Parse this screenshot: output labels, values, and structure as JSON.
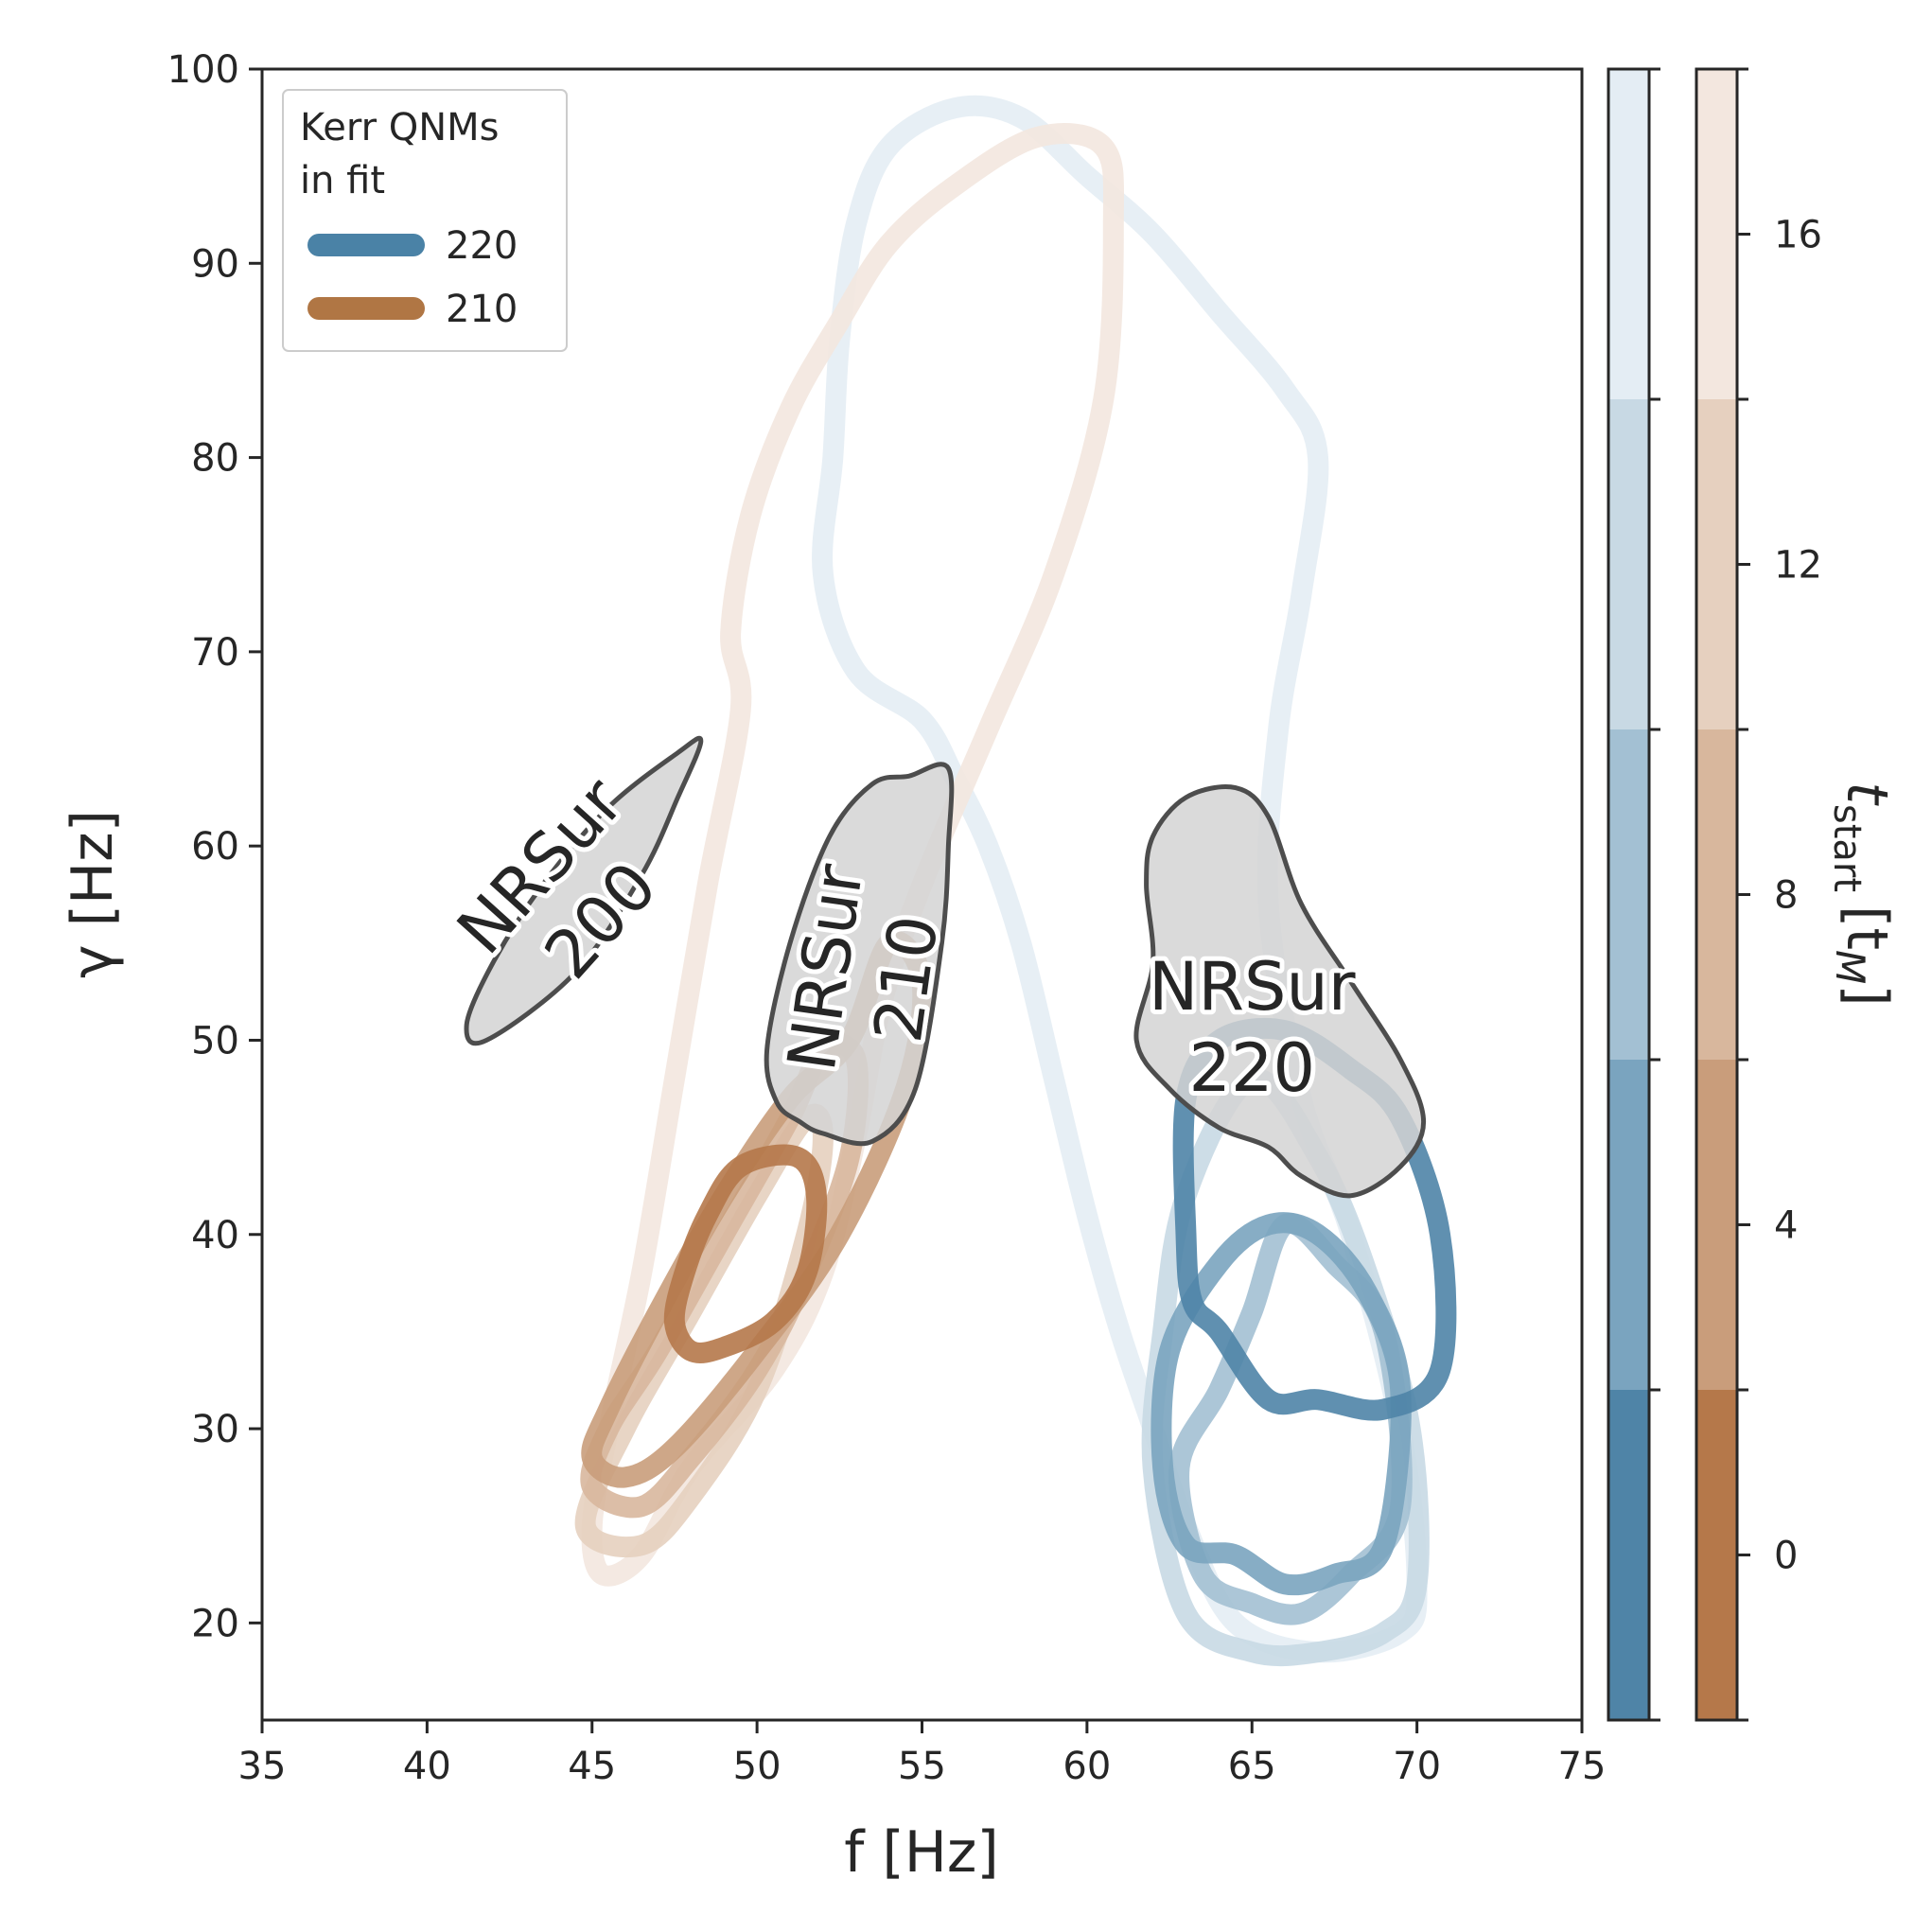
{
  "chart_data": {
    "type": "contour",
    "xlabel": "f [Hz]",
    "ylabel": "γ [Hz]",
    "xlim": [
      35,
      75
    ],
    "ylim": [
      15,
      100
    ],
    "xticks": [
      35,
      40,
      45,
      50,
      55,
      60,
      65,
      70,
      75
    ],
    "yticks": [
      20,
      30,
      40,
      50,
      60,
      70,
      80,
      90,
      100
    ],
    "legend": {
      "title": "Kerr QNMs in fit",
      "title_lines": [
        "Kerr QNMs",
        "in fit"
      ],
      "placement": "upper left",
      "entries": [
        {
          "label": "220",
          "color": "#4a82a6"
        },
        {
          "label": "210",
          "color": "#b07644"
        }
      ]
    },
    "colorbar": {
      "label": "t_start [t_M]",
      "label_main": "t",
      "label_sub": "start",
      "label_unit": "[t",
      "label_unit_sub": "M",
      "label_close": "]",
      "ticks": [
        0,
        4,
        8,
        12,
        16
      ],
      "range": [
        -2,
        18
      ],
      "levels": [
        -2,
        2,
        6,
        10,
        14,
        18
      ],
      "blue_shades": [
        "#4f84a7",
        "#7aa4bf",
        "#a3c0d3",
        "#c8d9e4",
        "#e4edf4"
      ],
      "brown_shades": [
        "#b5784a",
        "#c99d7b",
        "#d8b79d",
        "#e6d0bf",
        "#f3e7df"
      ]
    },
    "regions": [
      {
        "label": "NRSur 200",
        "label_lines": [
          "NRSur",
          "200"
        ],
        "color": "#d4d4d4",
        "points": [
          [
            41.2,
            50.8
          ],
          [
            41.8,
            50.0
          ],
          [
            44.5,
            53.5
          ],
          [
            46.5,
            58.5
          ],
          [
            47.6,
            62.5
          ],
          [
            48.3,
            65.4
          ],
          [
            47.6,
            64.8
          ],
          [
            45.5,
            62.0
          ],
          [
            43.5,
            58.0
          ],
          [
            42.0,
            54.0
          ]
        ]
      },
      {
        "label": "NRSur 210",
        "label_lines": [
          "NRSur",
          "210"
        ],
        "color": "#d4d4d4",
        "points": [
          [
            51.3,
            45.8
          ],
          [
            52.0,
            45.2
          ],
          [
            53.5,
            44.8
          ],
          [
            54.8,
            47.5
          ],
          [
            55.6,
            55.0
          ],
          [
            55.8,
            60.0
          ],
          [
            55.8,
            64.0
          ],
          [
            54.6,
            63.6
          ],
          [
            53.5,
            63.2
          ],
          [
            52.2,
            60.5
          ],
          [
            51.0,
            55.0
          ],
          [
            50.3,
            49.5
          ],
          [
            50.6,
            46.8
          ]
        ]
      },
      {
        "label": "NRSur 220",
        "label_lines": [
          "NRSur",
          "220"
        ],
        "color": "#d4d4d4",
        "points": [
          [
            62.0,
            60.5
          ],
          [
            63.0,
            62.5
          ],
          [
            64.5,
            63.0
          ],
          [
            65.5,
            61.5
          ],
          [
            66.5,
            57.0
          ],
          [
            68.0,
            53.0
          ],
          [
            69.5,
            49.0
          ],
          [
            70.2,
            45.8
          ],
          [
            69.5,
            43.5
          ],
          [
            68.0,
            42.0
          ],
          [
            66.5,
            43.0
          ],
          [
            65.5,
            44.5
          ],
          [
            64.0,
            45.5
          ],
          [
            62.5,
            47.5
          ],
          [
            61.5,
            50.0
          ],
          [
            62.0,
            54.0
          ],
          [
            61.8,
            58.0
          ]
        ]
      }
    ],
    "series": [
      {
        "name": "220",
        "color": "#4a82a6",
        "contours": [
          {
            "t_start": 0,
            "points": [
              [
                64.0,
                35.0
              ],
              [
                65.5,
                31.5
              ],
              [
                67.0,
                31.5
              ],
              [
                69.0,
                31.0
              ],
              [
                70.7,
                33.0
              ],
              [
                70.7,
                40.0
              ],
              [
                69.5,
                46.0
              ],
              [
                68.0,
                48.5
              ],
              [
                66.0,
                50.5
              ],
              [
                64.0,
                50.0
              ],
              [
                63.0,
                47.0
              ],
              [
                63.0,
                40.0
              ],
              [
                63.2,
                36.5
              ]
            ]
          },
          {
            "t_start": 4,
            "points": [
              [
                63.0,
                24.0
              ],
              [
                64.5,
                23.5
              ],
              [
                66.0,
                22.0
              ],
              [
                67.5,
                22.5
              ],
              [
                69.0,
                24.0
              ],
              [
                69.5,
                32.0
              ],
              [
                68.5,
                37.0
              ],
              [
                67.0,
                40.0
              ],
              [
                65.5,
                40.5
              ],
              [
                64.0,
                38.5
              ],
              [
                62.5,
                34.0
              ],
              [
                62.3,
                28.0
              ]
            ]
          },
          {
            "t_start": 8,
            "points": [
              [
                63.5,
                22.5
              ],
              [
                65.0,
                21.0
              ],
              [
                66.5,
                20.5
              ],
              [
                68.0,
                22.5
              ],
              [
                69.5,
                26.0
              ],
              [
                69.0,
                35.0
              ],
              [
                67.5,
                38.5
              ],
              [
                66.0,
                40.5
              ],
              [
                65.0,
                36.0
              ],
              [
                64.0,
                32.0
              ],
              [
                62.8,
                28.0
              ]
            ]
          },
          {
            "t_start": 12,
            "points": [
              [
                63.0,
                20.5
              ],
              [
                65.0,
                18.5
              ],
              [
                67.0,
                18.5
              ],
              [
                69.0,
                19.5
              ],
              [
                70.0,
                22.0
              ],
              [
                69.8,
                30.0
              ],
              [
                68.5,
                38.0
              ],
              [
                67.0,
                44.0
              ],
              [
                65.0,
                48.0
              ],
              [
                63.0,
                42.0
              ],
              [
                62.3,
                35.0
              ],
              [
                62.0,
                28.0
              ]
            ]
          },
          {
            "t_start": 16,
            "points": [
              [
                63.0,
                25.0
              ],
              [
                64.5,
                20.0
              ],
              [
                67.0,
                18.5
              ],
              [
                69.5,
                19.5
              ],
              [
                70.0,
                22.0
              ],
              [
                69.5,
                30.0
              ],
              [
                68.0,
                40.0
              ],
              [
                66.5,
                47.0
              ],
              [
                65.5,
                57.0
              ],
              [
                65.8,
                66.0
              ],
              [
                66.5,
                73.0
              ],
              [
                67.0,
                80.0
              ],
              [
                66.0,
                83.5
              ],
              [
                64.0,
                87.5
              ],
              [
                62.0,
                91.5
              ],
              [
                60.0,
                94.5
              ],
              [
                58.0,
                97.5
              ],
              [
                56.0,
                98.0
              ],
              [
                54.0,
                96.0
              ],
              [
                53.0,
                92.0
              ],
              [
                52.5,
                86.0
              ],
              [
                52.3,
                80.0
              ],
              [
                52.0,
                74.0
              ],
              [
                53.0,
                69.0
              ],
              [
                55.0,
                66.5
              ],
              [
                56.0,
                63.5
              ],
              [
                57.0,
                60.0
              ],
              [
                58.0,
                55.0
              ],
              [
                59.0,
                48.0
              ],
              [
                60.0,
                41.0
              ],
              [
                61.0,
                35.0
              ],
              [
                62.0,
                30.0
              ]
            ]
          }
        ]
      },
      {
        "name": "210",
        "color": "#b07644",
        "contours": [
          {
            "t_start": 0,
            "points": [
              [
                48.0,
                34.0
              ],
              [
                49.0,
                34.2
              ],
              [
                50.5,
                35.5
              ],
              [
                51.5,
                38.0
              ],
              [
                51.8,
                42.0
              ],
              [
                51.2,
                44.0
              ],
              [
                49.5,
                43.5
              ],
              [
                48.5,
                41.0
              ],
              [
                47.8,
                38.0
              ],
              [
                47.5,
                35.5
              ]
            ]
          },
          {
            "t_start": 4,
            "points": [
              [
                45.0,
                28.5
              ],
              [
                46.0,
                27.5
              ],
              [
                47.5,
                29.0
              ],
              [
                50.0,
                34.0
              ],
              [
                52.5,
                40.0
              ],
              [
                54.5,
                47.5
              ],
              [
                55.0,
                53.0
              ],
              [
                54.0,
                55.0
              ],
              [
                52.8,
                50.0
              ],
              [
                51.0,
                47.0
              ],
              [
                49.0,
                42.0
              ],
              [
                47.0,
                36.0
              ],
              [
                45.5,
                31.0
              ]
            ]
          },
          {
            "t_start": 8,
            "points": [
              [
                45.0,
                27.0
              ],
              [
                46.5,
                26.0
              ],
              [
                48.0,
                28.5
              ],
              [
                50.0,
                33.0
              ],
              [
                51.5,
                38.0
              ],
              [
                52.8,
                44.0
              ],
              [
                53.0,
                49.0
              ],
              [
                52.0,
                49.5
              ],
              [
                51.0,
                46.0
              ],
              [
                49.0,
                40.0
              ],
              [
                47.0,
                34.0
              ],
              [
                45.5,
                30.0
              ]
            ]
          },
          {
            "t_start": 12,
            "points": [
              [
                44.8,
                25.0
              ],
              [
                46.5,
                24.0
              ],
              [
                48.0,
                26.5
              ],
              [
                50.0,
                32.0
              ],
              [
                51.5,
                40.0
              ],
              [
                52.0,
                45.0
              ],
              [
                51.5,
                46.0
              ],
              [
                50.0,
                42.0
              ],
              [
                48.0,
                36.0
              ],
              [
                46.0,
                30.0
              ]
            ]
          },
          {
            "t_start": 16,
            "points": [
              [
                45.3,
                22.5
              ],
              [
                46.5,
                23.5
              ],
              [
                48.0,
                28.0
              ],
              [
                50.5,
                33.0
              ],
              [
                52.0,
                38.0
              ],
              [
                53.0,
                45.0
              ],
              [
                53.8,
                52.0
              ],
              [
                55.0,
                58.0
              ],
              [
                57.0,
                66.0
              ],
              [
                59.0,
                74.0
              ],
              [
                60.5,
                83.0
              ],
              [
                60.8,
                92.0
              ],
              [
                60.5,
                96.0
              ],
              [
                58.5,
                96.5
              ],
              [
                56.0,
                94.0
              ],
              [
                54.0,
                91.0
              ],
              [
                52.5,
                87.0
              ],
              [
                51.0,
                82.5
              ],
              [
                49.8,
                77.0
              ],
              [
                49.2,
                71.0
              ],
              [
                49.5,
                67.0
              ],
              [
                48.5,
                58.0
              ],
              [
                47.5,
                48.0
              ],
              [
                46.5,
                38.0
              ],
              [
                45.5,
                30.0
              ],
              [
                45.0,
                25.0
              ]
            ]
          }
        ]
      }
    ]
  }
}
